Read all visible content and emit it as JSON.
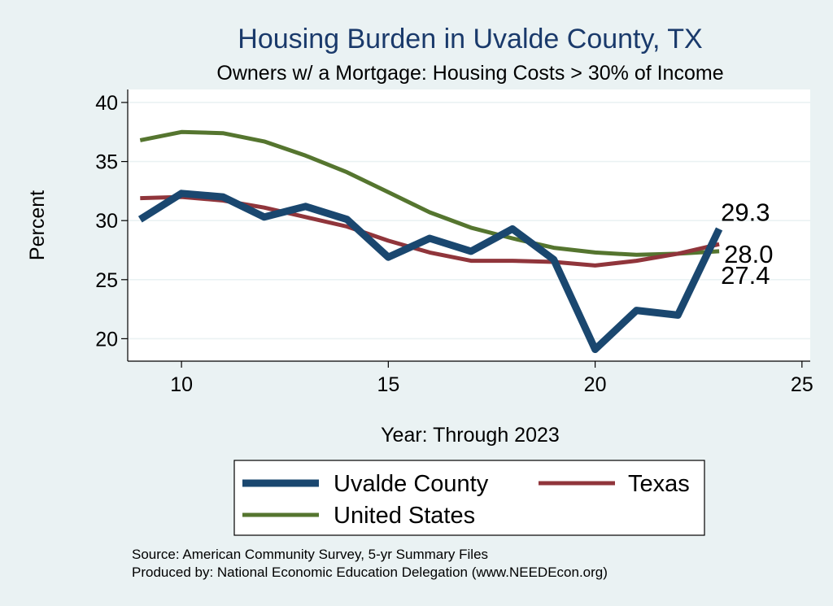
{
  "chart_data": {
    "type": "line",
    "title": "Housing Burden in Uvalde County, TX",
    "subtitle": "Owners w/ a Mortgage: Housing Costs > 30% of Income",
    "xlabel": "Year: Through 2023",
    "ylabel": "Percent",
    "xlim": [
      8.7,
      25.2
    ],
    "ylim": [
      18.1,
      41.1
    ],
    "xticks": [
      10,
      15,
      20,
      25
    ],
    "yticks": [
      20,
      25,
      30,
      35,
      40
    ],
    "grid": true,
    "x": [
      9,
      10,
      11,
      12,
      13,
      14,
      15,
      16,
      17,
      18,
      19,
      20,
      21,
      22,
      23
    ],
    "series": [
      {
        "name": "Uvalde County",
        "color": "#1a476f",
        "values": [
          30.1,
          32.3,
          32.0,
          30.3,
          31.2,
          30.1,
          26.9,
          28.5,
          27.4,
          29.3,
          26.7,
          19.1,
          22.4,
          22.0,
          29.3
        ],
        "end_label": "29.3"
      },
      {
        "name": "Texas",
        "color": "#90353b",
        "values": [
          31.9,
          32.0,
          31.7,
          31.1,
          30.3,
          29.5,
          28.3,
          27.3,
          26.6,
          26.6,
          26.5,
          26.2,
          26.6,
          27.2,
          28.0
        ],
        "end_label": "28.0"
      },
      {
        "name": "United States",
        "color": "#55752f",
        "values": [
          36.8,
          37.5,
          37.4,
          36.7,
          35.5,
          34.1,
          32.4,
          30.7,
          29.4,
          28.5,
          27.7,
          27.3,
          27.1,
          27.2,
          27.4
        ],
        "end_label": "27.4"
      }
    ],
    "legend_position": "bottom"
  },
  "source_lines": [
    "Source: American Community Survey, 5-yr Summary Files",
    "Produced by: National Economic Education Delegation (www.NEEDEcon.org)"
  ]
}
